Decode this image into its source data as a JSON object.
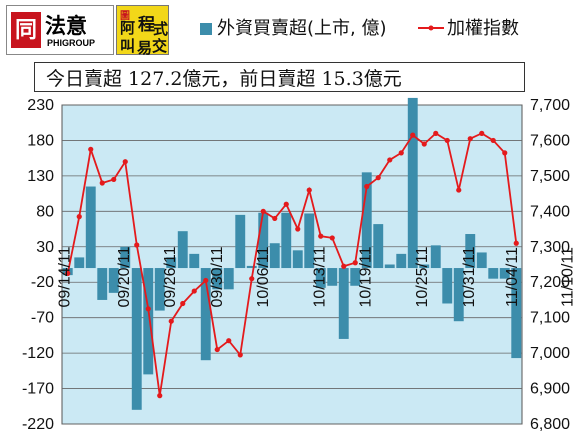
{
  "logos": {
    "phigroup": {
      "mark": "同",
      "name": "法意",
      "sub": "PHIGROUP"
    },
    "program_trading": {
      "chars": [
        "阿",
        "程",
        "式",
        "叫",
        "易",
        "交"
      ],
      "mark": "圖"
    }
  },
  "headline": "今日賣超 127.2億元，前日賣超 15.3億元",
  "colors": {
    "bar": "#3c8dab",
    "line": "#e41a1c",
    "plot_bg": "#cbe9f4",
    "grid": "#666666"
  },
  "chart_data": {
    "type": "bar+line",
    "series": [
      {
        "name": "外資買賣超(上市, 億)",
        "type": "bar",
        "axis": "left",
        "values": [
          -10,
          15,
          115,
          -45,
          -35,
          30,
          -200,
          -150,
          -60,
          15,
          52,
          20,
          -130,
          -30,
          -30,
          75,
          3,
          78,
          35,
          78,
          25,
          77,
          -28,
          -25,
          -100,
          -25,
          135,
          62,
          5,
          20,
          240,
          5,
          32,
          -50,
          -75,
          48,
          22,
          -15,
          -15,
          -127
        ]
      },
      {
        "name": "加權指數",
        "type": "line",
        "axis": "right",
        "values": [
          7225,
          7385,
          7575,
          7480,
          7490,
          7540,
          7305,
          7125,
          6880,
          7090,
          7140,
          7175,
          7205,
          7010,
          7035,
          6995,
          7210,
          7400,
          7380,
          7420,
          7350,
          7460,
          7330,
          7325,
          7245,
          7255,
          7470,
          7495,
          7545,
          7565,
          7615,
          7590,
          7620,
          7600,
          7460,
          7605,
          7620,
          7600,
          7565,
          7310
        ]
      }
    ],
    "x_tick_labels": [
      "09/14/11",
      "09/20/11",
      "09/26/11",
      "09/30/11",
      "10/06/11",
      "10/13/11",
      "10/19/11",
      "10/25/11",
      "10/31/11",
      "11/04/11",
      "11/10/11"
    ],
    "x_tick_index": [
      0,
      5,
      9,
      13,
      17,
      22,
      26,
      31,
      35,
      39,
      44
    ],
    "y_left": {
      "min": -220,
      "max": 230,
      "ticks": [
        230,
        180,
        130,
        80,
        30,
        -20,
        -70,
        -120,
        -170,
        -220
      ]
    },
    "y_right": {
      "min": 6800,
      "max": 7700,
      "ticks": [
        "7,700",
        "7,600",
        "7,500",
        "7,400",
        "7,300",
        "7,200",
        "7,100",
        "7,000",
        "6,900",
        "6,800"
      ]
    },
    "grid": "horizontal",
    "legend_position": "top"
  }
}
